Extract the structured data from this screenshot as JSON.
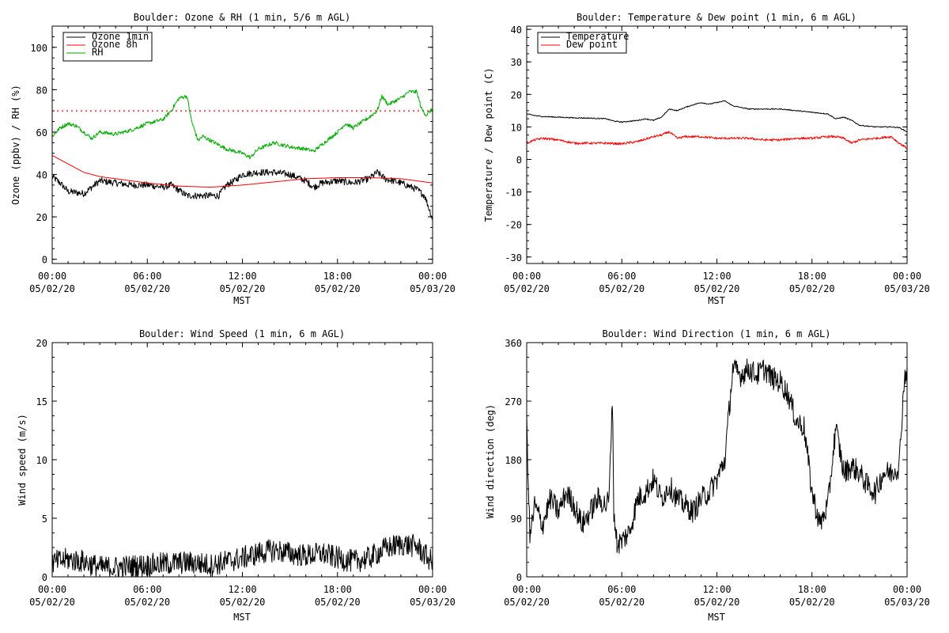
{
  "chart_data": [
    {
      "type": "line",
      "title": "Boulder: Ozone & RH (1 min, 5/6 m AGL)",
      "xlabel": "MST",
      "ylabel": "Ozone (ppbv) / RH (%)",
      "xlim": [
        0,
        24
      ],
      "ylim": [
        -2,
        110
      ],
      "yticks": [
        0,
        20,
        40,
        60,
        80,
        100
      ],
      "xticks": [
        {
          "x": 0,
          "top": "00:00",
          "bottom": "05/02/20"
        },
        {
          "x": 6,
          "top": "06:00",
          "bottom": "05/02/20"
        },
        {
          "x": 12,
          "top": "12:00",
          "bottom": "05/02/20"
        },
        {
          "x": 18,
          "top": "18:00",
          "bottom": "05/02/20"
        },
        {
          "x": 24,
          "top": "00:00",
          "bottom": "05/03/20"
        }
      ],
      "legend_position": "top-left",
      "hline": {
        "y": 70,
        "color": "#ff0000",
        "style": "dotted"
      },
      "series": [
        {
          "name": "Ozone 1min",
          "color": "#000000",
          "noise": 1.6,
          "x": [
            0,
            0.5,
            1,
            2,
            2.5,
            3,
            4,
            5,
            6,
            7,
            7.5,
            8.5,
            9.5,
            10.5,
            11,
            11.5,
            12,
            13,
            14,
            15,
            16,
            16.5,
            17,
            18,
            19,
            20,
            20.5,
            21,
            22,
            23,
            23.5,
            24
          ],
          "y": [
            39,
            36,
            32,
            31,
            34,
            37,
            36,
            35,
            35,
            34,
            35,
            30,
            30,
            30,
            35,
            37,
            40,
            41,
            41,
            40,
            37,
            34,
            36,
            37,
            36,
            38,
            41,
            38,
            36,
            33,
            30,
            19
          ]
        },
        {
          "name": "Ozone 8h",
          "color": "#ff0000",
          "noise": 0,
          "x": [
            0,
            1,
            2,
            3,
            4,
            6,
            8,
            10,
            12,
            14,
            16,
            18,
            20,
            22,
            24
          ],
          "y": [
            49,
            45,
            41,
            39,
            38,
            36,
            34.5,
            34,
            35,
            36.5,
            38,
            38.5,
            38.5,
            38,
            36
          ]
        },
        {
          "name": "RH",
          "color": "#00aa00",
          "noise": 0.9,
          "x": [
            0,
            0.5,
            1,
            1.5,
            2,
            2.5,
            3,
            4,
            5,
            6,
            7,
            7.5,
            8,
            8.5,
            8.8,
            9.2,
            9.5,
            10,
            11,
            12,
            12.5,
            13,
            14,
            15,
            16,
            16.5,
            17,
            18,
            18.5,
            19,
            20,
            20.5,
            20.8,
            21.2,
            22,
            22.5,
            23,
            23.3,
            23.6,
            24
          ],
          "y": [
            58,
            62,
            64,
            63,
            60,
            57,
            60,
            59,
            61,
            64,
            66,
            70,
            76,
            77,
            65,
            56,
            58,
            56,
            52,
            50,
            48,
            52,
            55,
            53,
            52,
            51,
            54,
            60,
            64,
            62,
            67,
            70,
            77,
            73,
            76,
            79,
            79,
            71,
            68,
            71
          ]
        }
      ]
    },
    {
      "type": "line",
      "title": "Boulder: Temperature & Dew point (1 min, 6 m AGL)",
      "xlabel": "MST",
      "ylabel": "Temperature / Dew point (C)",
      "xlim": [
        0,
        24
      ],
      "ylim": [
        -32,
        41
      ],
      "yticks": [
        -30,
        -20,
        -10,
        0,
        10,
        20,
        30,
        40
      ],
      "xticks": [
        {
          "x": 0,
          "top": "00:00",
          "bottom": "05/02/20"
        },
        {
          "x": 6,
          "top": "06:00",
          "bottom": "05/02/20"
        },
        {
          "x": 12,
          "top": "12:00",
          "bottom": "05/02/20"
        },
        {
          "x": 18,
          "top": "18:00",
          "bottom": "05/02/20"
        },
        {
          "x": 24,
          "top": "00:00",
          "bottom": "05/03/20"
        }
      ],
      "legend_position": "top-left",
      "series": [
        {
          "name": "Temperature",
          "color": "#000000",
          "noise": 0.15,
          "x": [
            0,
            0.5,
            1,
            2,
            3,
            4,
            5,
            5.5,
            6,
            7,
            7.5,
            8,
            8.5,
            9,
            9.5,
            10,
            10.5,
            11,
            11.5,
            12,
            12.5,
            13,
            14,
            15,
            16,
            17,
            18,
            19,
            19.5,
            20,
            20.5,
            21,
            22,
            23,
            23.5,
            24
          ],
          "y": [
            14,
            13.5,
            13.2,
            13,
            12.8,
            12.7,
            12.5,
            11.8,
            11.5,
            12,
            12.5,
            12,
            13,
            15.5,
            15,
            16,
            16.8,
            17.5,
            17,
            17.5,
            18,
            16.5,
            15.5,
            15.5,
            15.5,
            15,
            14.5,
            14,
            12.5,
            13,
            12,
            10.5,
            10,
            10,
            9.8,
            8.5
          ]
        },
        {
          "name": "Dew point",
          "color": "#ff0000",
          "noise": 0.35,
          "x": [
            0,
            0.5,
            1,
            2,
            3,
            4,
            5,
            6,
            7,
            8,
            8.5,
            9,
            9.5,
            10,
            11,
            12,
            13,
            14,
            15,
            16,
            17,
            18,
            19,
            19.5,
            20,
            20.5,
            21,
            22,
            23,
            23.5,
            24
          ],
          "y": [
            5,
            6,
            6.5,
            6,
            5,
            5,
            5,
            4.8,
            5.5,
            7,
            7.5,
            8.5,
            6.5,
            7,
            7,
            6.5,
            6.5,
            6.5,
            6,
            6,
            6.5,
            6.5,
            7,
            7,
            6.5,
            5,
            6,
            6.5,
            7,
            5,
            3.5
          ]
        }
      ]
    },
    {
      "type": "line",
      "title": "Boulder: Wind Speed (1 min, 6 m AGL)",
      "xlabel": "MST",
      "ylabel": "Wind speed (m/s)",
      "xlim": [
        0,
        24
      ],
      "ylim": [
        0,
        20
      ],
      "yticks": [
        0,
        5,
        10,
        15,
        20
      ],
      "xticks": [
        {
          "x": 0,
          "top": "00:00",
          "bottom": "05/02/20"
        },
        {
          "x": 6,
          "top": "06:00",
          "bottom": "05/02/20"
        },
        {
          "x": 12,
          "top": "12:00",
          "bottom": "05/02/20"
        },
        {
          "x": 18,
          "top": "18:00",
          "bottom": "05/02/20"
        },
        {
          "x": 24,
          "top": "00:00",
          "bottom": "05/03/20"
        }
      ],
      "series": [
        {
          "name": "",
          "color": "#000000",
          "noise": 1.0,
          "clip_min": 0,
          "x": [
            0,
            1,
            2,
            3,
            4,
            5,
            6,
            7,
            8,
            9,
            10,
            11,
            12,
            13,
            14,
            15,
            16,
            17,
            18,
            19,
            20,
            21,
            22,
            23,
            24
          ],
          "y": [
            1.2,
            1.5,
            1.3,
            0.8,
            0.8,
            0.9,
            1.0,
            1.1,
            1.2,
            1.2,
            1.0,
            1.3,
            1.6,
            2.0,
            2.3,
            2.0,
            1.8,
            2.0,
            1.6,
            1.3,
            1.6,
            2.4,
            2.8,
            2.6,
            1.2
          ]
        }
      ]
    },
    {
      "type": "line",
      "title": "Boulder: Wind Direction (1 min, 6 m AGL)",
      "xlabel": "MST",
      "ylabel": "Wind direction (deg)",
      "xlim": [
        0,
        24
      ],
      "ylim": [
        0,
        360
      ],
      "yticks": [
        0,
        90,
        180,
        270,
        360
      ],
      "xticks": [
        {
          "x": 0,
          "top": "00:00",
          "bottom": "05/02/20"
        },
        {
          "x": 6,
          "top": "06:00",
          "bottom": "05/02/20"
        },
        {
          "x": 12,
          "top": "12:00",
          "bottom": "05/02/20"
        },
        {
          "x": 18,
          "top": "18:00",
          "bottom": "05/02/20"
        },
        {
          "x": 24,
          "top": "00:00",
          "bottom": "05/03/20"
        }
      ],
      "series": [
        {
          "name": "",
          "color": "#000000",
          "noise": 18,
          "clip_min": 0,
          "clip_max": 360,
          "x": [
            0,
            0.2,
            0.5,
            1,
            1.5,
            2,
            2.5,
            3,
            3.5,
            4,
            4.5,
            5,
            5.2,
            5.4,
            5.5,
            5.7,
            6,
            6.5,
            7,
            7.5,
            8,
            8.5,
            9,
            9.5,
            10,
            10.5,
            11,
            11.5,
            12,
            12.5,
            13,
            13.5,
            14,
            14.5,
            15,
            15.5,
            16,
            16.5,
            17,
            17.5,
            18,
            18.5,
            19,
            19.5,
            20,
            20.5,
            21,
            21.5,
            22,
            22.5,
            23,
            23.5,
            23.8,
            24
          ],
          "y": [
            240,
            60,
            110,
            80,
            120,
            100,
            130,
            110,
            80,
            100,
            120,
            110,
            120,
            280,
            100,
            50,
            55,
            70,
            120,
            130,
            150,
            120,
            140,
            120,
            110,
            100,
            120,
            130,
            150,
            180,
            320,
            310,
            320,
            310,
            320,
            305,
            300,
            280,
            240,
            230,
            130,
            80,
            110,
            230,
            160,
            170,
            160,
            140,
            130,
            160,
            160,
            170,
            300,
            320
          ]
        }
      ]
    }
  ]
}
